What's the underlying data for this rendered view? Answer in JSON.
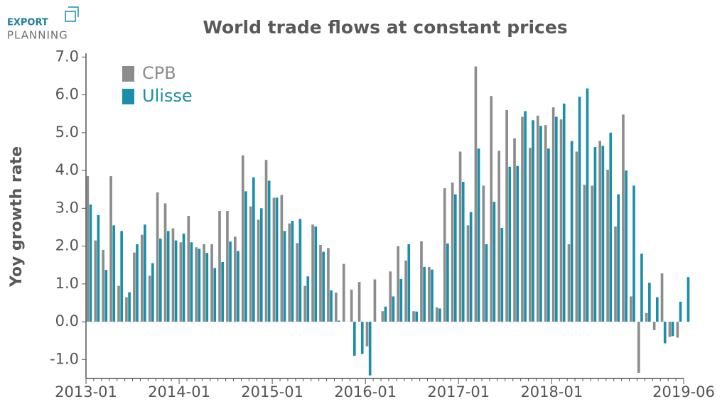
{
  "logo": {
    "line1": "EXPORT",
    "line2": "PLANNING"
  },
  "chart_data": {
    "type": "bar",
    "title": "World trade flows at constant prices",
    "ylabel": "Yoy growth rate",
    "categories": [
      "2013-01",
      null,
      null,
      null,
      null,
      null,
      null,
      null,
      null,
      null,
      null,
      null,
      "2014-01",
      null,
      null,
      null,
      null,
      null,
      null,
      null,
      null,
      null,
      null,
      null,
      "2015-01",
      null,
      null,
      null,
      null,
      null,
      null,
      null,
      null,
      null,
      null,
      null,
      "2016-01",
      null,
      null,
      null,
      null,
      null,
      null,
      null,
      null,
      null,
      null,
      null,
      "2017-01",
      null,
      null,
      null,
      null,
      null,
      null,
      null,
      null,
      null,
      null,
      null,
      "2018-01",
      null,
      null,
      null,
      null,
      null,
      null,
      null,
      null,
      null,
      null,
      null,
      null,
      null,
      null,
      null,
      null,
      "2019-06"
    ],
    "series": [
      {
        "name": "CPB",
        "color": "#8c8c8c",
        "values": [
          3.85,
          2.15,
          1.9,
          3.85,
          0.95,
          0.65,
          1.83,
          2.3,
          1.22,
          3.42,
          3.13,
          2.47,
          2.1,
          2.8,
          1.97,
          2.05,
          2.05,
          2.93,
          2.93,
          2.25,
          4.4,
          3.05,
          2.7,
          4.28,
          3.28,
          3.35,
          2.6,
          2.08,
          0.95,
          2.57,
          2.03,
          1.95,
          0.77,
          1.53,
          0.85,
          1.05,
          -0.65,
          1.12,
          0.28,
          1.33,
          2.0,
          1.62,
          0.28,
          2.13,
          1.45,
          0.38,
          3.53,
          3.68,
          4.5,
          2.55,
          6.75,
          3.6,
          5.97,
          4.52,
          5.6,
          4.85,
          5.42,
          4.6,
          5.45,
          5.2,
          5.67,
          5.35,
          2.05,
          4.5,
          3.62,
          3.6,
          4.78,
          4.02,
          2.52,
          5.48,
          0.67,
          -1.35,
          0.23,
          -0.22,
          1.28,
          -0.4,
          -0.42,
          null
        ]
      },
      {
        "name": "Ulisse",
        "color": "#1a8fa8",
        "values": [
          3.1,
          2.82,
          1.37,
          2.55,
          2.4,
          0.78,
          2.05,
          2.57,
          1.55,
          2.2,
          2.4,
          2.15,
          2.33,
          2.1,
          1.93,
          1.82,
          1.42,
          1.58,
          2.12,
          1.87,
          3.45,
          3.82,
          3.0,
          3.73,
          3.28,
          2.4,
          2.67,
          2.72,
          1.2,
          2.52,
          1.85,
          0.83,
          0.03,
          0.0,
          -0.9,
          -0.85,
          -1.42,
          0.0,
          0.4,
          0.67,
          1.13,
          2.05,
          0.27,
          1.45,
          1.38,
          0.35,
          2.07,
          3.37,
          3.7,
          2.9,
          4.58,
          2.05,
          3.17,
          2.48,
          4.1,
          4.12,
          5.57,
          5.33,
          5.18,
          4.58,
          5.42,
          5.77,
          4.78,
          5.95,
          6.17,
          4.62,
          4.65,
          5.0,
          3.37,
          4.0,
          3.6,
          1.8,
          1.03,
          0.65,
          -0.57,
          -0.38,
          0.53,
          1.18
        ]
      }
    ],
    "ylim": [
      -1.5,
      7.1
    ],
    "yticks": [
      {
        "value": -1,
        "label": "-1.0"
      },
      {
        "value": 0,
        "label": "0.0"
      },
      {
        "value": 1,
        "label": "1.0"
      },
      {
        "value": 2,
        "label": "2.0"
      },
      {
        "value": 3,
        "label": "3.0"
      },
      {
        "value": 4,
        "label": "4.0"
      },
      {
        "value": 5,
        "label": "5.0"
      },
      {
        "value": 6,
        "label": "6.0"
      },
      {
        "value": 7,
        "label": "7.0"
      }
    ],
    "legend": "upper-left"
  }
}
